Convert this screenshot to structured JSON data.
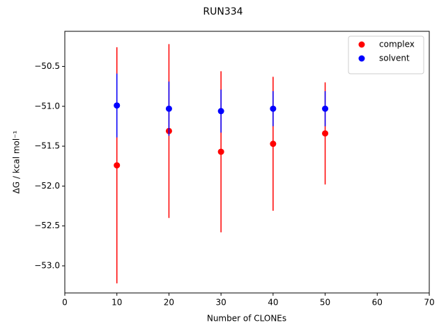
{
  "chart_data": {
    "type": "errorbar-scatter",
    "title": "RUN334",
    "x_label": "Number of CLONEs",
    "y_label": "ΔG / kcal mol⁻¹",
    "x": [
      10,
      20,
      30,
      40,
      50
    ],
    "series": [
      {
        "name": "complex",
        "color": "#ff0000",
        "values": [
          -51.74,
          -51.31,
          -51.57,
          -51.47,
          -51.34
        ],
        "errors": [
          1.48,
          1.09,
          1.01,
          0.84,
          0.64
        ]
      },
      {
        "name": "solvent",
        "color": "#0000ff",
        "values": [
          -50.99,
          -51.03,
          -51.06,
          -51.03,
          -51.03
        ],
        "errors": [
          0.4,
          0.34,
          0.27,
          0.22,
          0.22
        ]
      }
    ],
    "xlim": [
      0,
      70
    ],
    "xticks": [
      0,
      10,
      20,
      30,
      40,
      50,
      60,
      70
    ],
    "ylim": [
      -53.34,
      -50.06
    ],
    "yticks": [
      {
        "value": -53.0,
        "label": "−53.0"
      },
      {
        "value": -52.5,
        "label": "−52.5"
      },
      {
        "value": -52.0,
        "label": "−52.0"
      },
      {
        "value": -51.5,
        "label": "−51.5"
      },
      {
        "value": -51.0,
        "label": "−51.0"
      },
      {
        "value": -50.5,
        "label": "−50.5"
      }
    ],
    "grid": false,
    "legend": "upper right"
  }
}
